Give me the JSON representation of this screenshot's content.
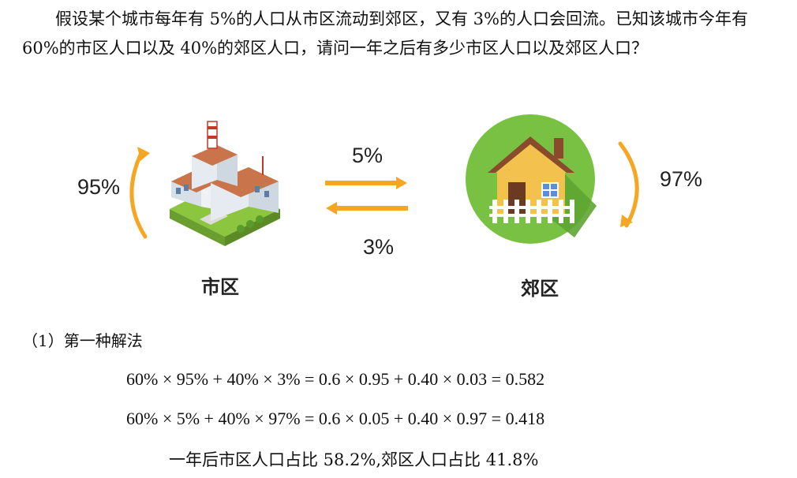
{
  "problem_text": "假设某个城市每年有 5%的人口从市区流动到郊区，又有 3%的人口会回流。已知该城市今年有 60%的市区人口以及 40%的郊区人口，请问一年之后有多少市区人口以及郊区人口？",
  "diagram": {
    "city_stay": "95%",
    "suburb_stay": "97%",
    "to_suburb": "5%",
    "to_city": "3%",
    "city_label": "市区",
    "suburb_label": "郊区",
    "colors": {
      "arrow": "#f5a623",
      "grass": "#8cc63f",
      "suburb_circle": "#79c143",
      "house_wall": "#f2c14e",
      "roof": "#8b4a2b"
    }
  },
  "solution": {
    "method_title": "（1）第一种解法",
    "eq1": "60% × 95% + 40% × 3% = 0.6 × 0.95 + 0.40 × 0.03 = 0.582",
    "eq2": "60% × 5% + 40% × 97% = 0.6 × 0.05 + 0.40 × 0.97 = 0.418",
    "conclusion": "一年后市区人口占比  58.2%,郊区人口占比  41.8%"
  }
}
